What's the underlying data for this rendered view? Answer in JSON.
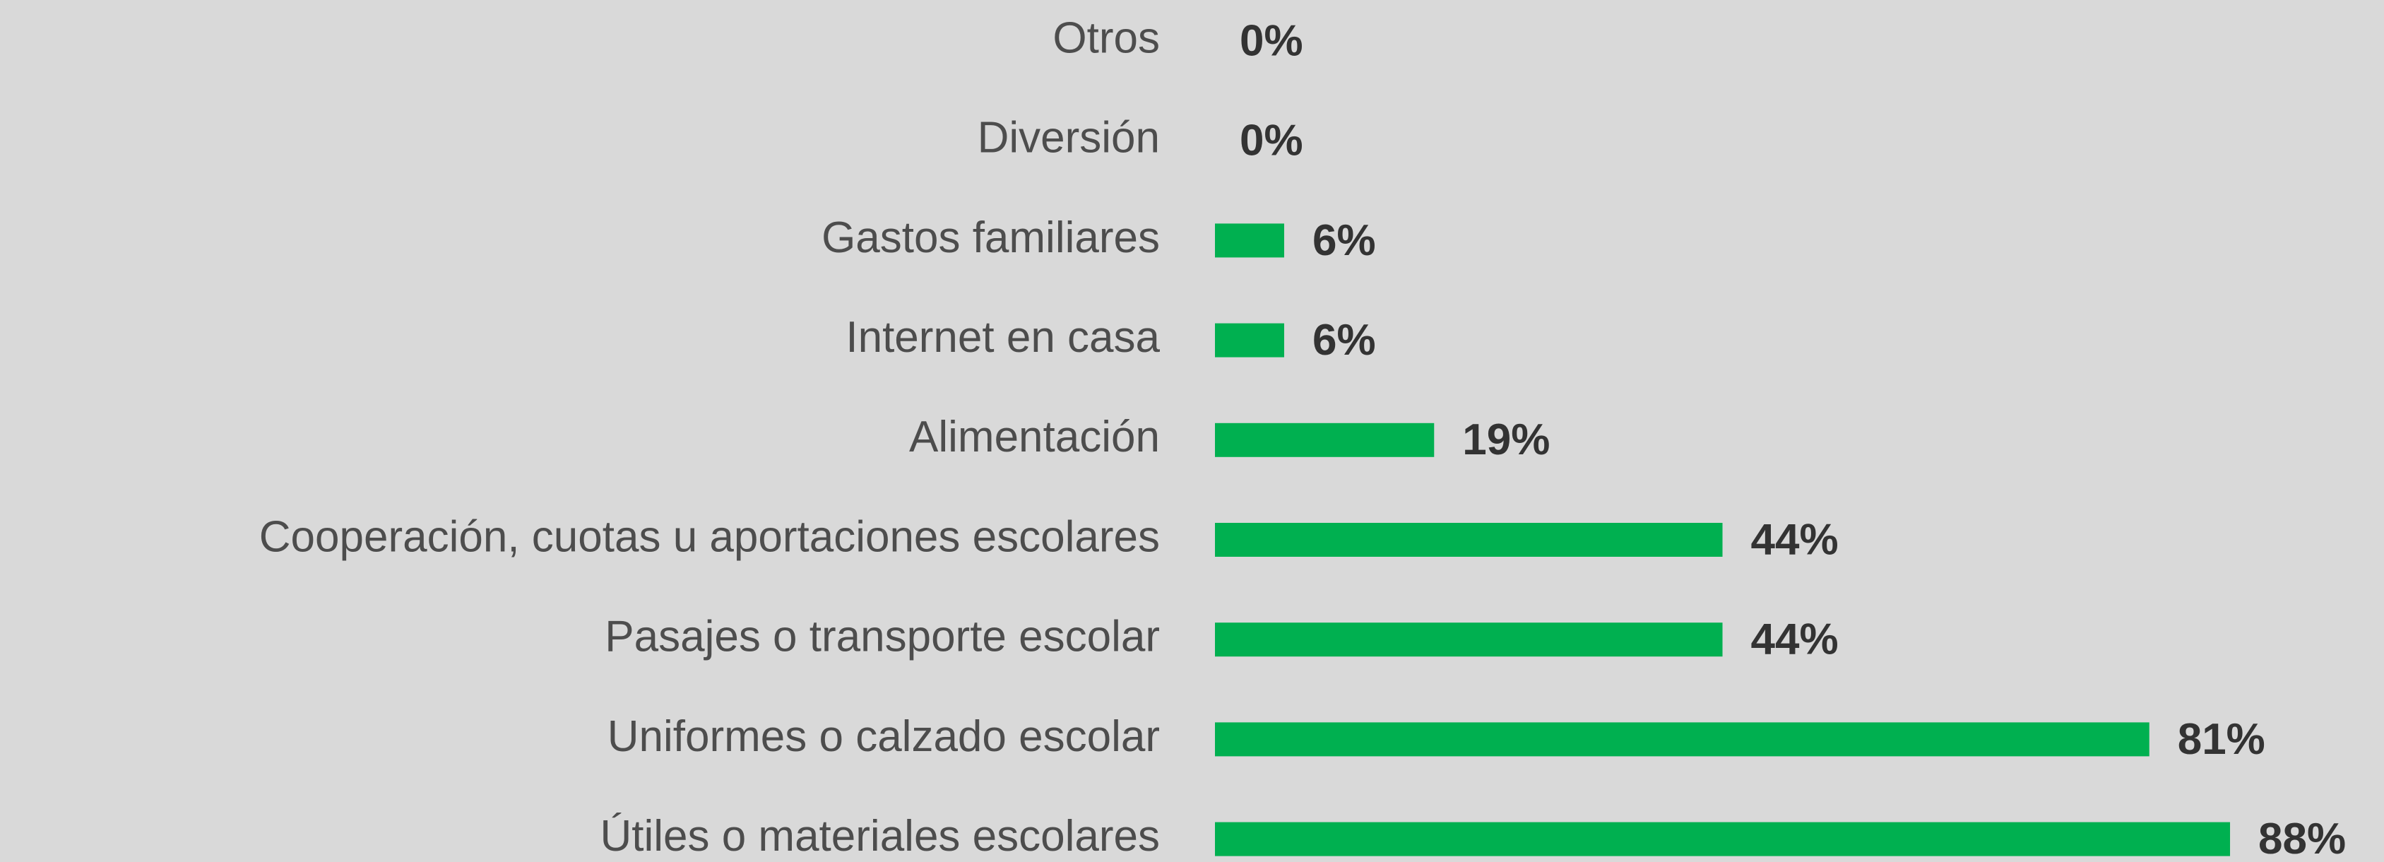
{
  "chart_data": {
    "type": "barh",
    "categories": [
      "Otros",
      "Diversión",
      "Gastos familiares",
      "Internet en casa",
      "Alimentación",
      "Cooperación, cuotas u aportaciones escolares",
      "Pasajes o transporte escolar",
      "Uniformes o calzado escolar",
      "Útiles o materiales escolares"
    ],
    "values": [
      0,
      0,
      6,
      6,
      19,
      44,
      44,
      81,
      88
    ],
    "value_labels": [
      "0%",
      "0%",
      "6%",
      "6%",
      "19%",
      "44%",
      "44%",
      "81%",
      "88%"
    ],
    "color": "#00b050"
  }
}
